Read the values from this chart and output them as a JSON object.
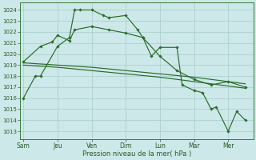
{
  "xlabel": "Pression niveau de la mer( hPa )",
  "ylim": [
    1012.3,
    1024.7
  ],
  "yticks": [
    1013,
    1014,
    1015,
    1016,
    1017,
    1018,
    1019,
    1020,
    1021,
    1022,
    1023,
    1024
  ],
  "xtick_labels": [
    "Sam",
    "Jeu",
    "Ven",
    "Dim",
    "Lun",
    "Mar",
    "Mer"
  ],
  "xtick_positions": [
    0,
    2,
    4,
    6,
    8,
    10,
    12
  ],
  "xlim": [
    -0.2,
    13.5
  ],
  "bg_color": "#cce8e8",
  "grid_color": "#a8cccc",
  "line_color": "#2a6b2a",
  "tick_color": "#2a5a2a",
  "spine_color": "#3a7a3a",
  "series_A": {
    "x": [
      0,
      0.7,
      1,
      2,
      2.7,
      3,
      3.3,
      4,
      4.7,
      5,
      6,
      6.7,
      7,
      7.5,
      8,
      9,
      9.3,
      10,
      10.5,
      11,
      11.3,
      12,
      12.5,
      13
    ],
    "y": [
      1016,
      1018,
      1018,
      1020.7,
      1021.5,
      1024,
      1024,
      1024,
      1023.5,
      1023.3,
      1023.5,
      1022.2,
      1021.5,
      1019.8,
      1020.6,
      1020.6,
      1017.2,
      1016.7,
      1016.5,
      1015.0,
      1015.2,
      1013.0,
      1014.8,
      1014.0
    ]
  },
  "series_B": {
    "x": [
      0,
      1,
      1.7,
      2,
      2.7,
      3,
      4,
      5,
      6,
      7,
      8,
      9,
      10,
      11,
      12,
      13
    ],
    "y": [
      1019.3,
      1020.7,
      1021.1,
      1021.7,
      1021.2,
      1022.2,
      1022.5,
      1022.2,
      1021.9,
      1021.5,
      1019.8,
      1018.5,
      1017.7,
      1017.2,
      1017.5,
      1017.0
    ]
  },
  "series_C": {
    "x": [
      0,
      2,
      4,
      6,
      8,
      10,
      12,
      13
    ],
    "y": [
      1019.2,
      1019.0,
      1018.8,
      1018.5,
      1018.2,
      1017.9,
      1017.5,
      1017.3
    ]
  },
  "series_D": {
    "x": [
      0,
      2,
      4,
      6,
      8,
      10,
      12,
      13
    ],
    "y": [
      1019.0,
      1018.8,
      1018.5,
      1018.2,
      1017.9,
      1017.5,
      1017.1,
      1016.9
    ]
  }
}
